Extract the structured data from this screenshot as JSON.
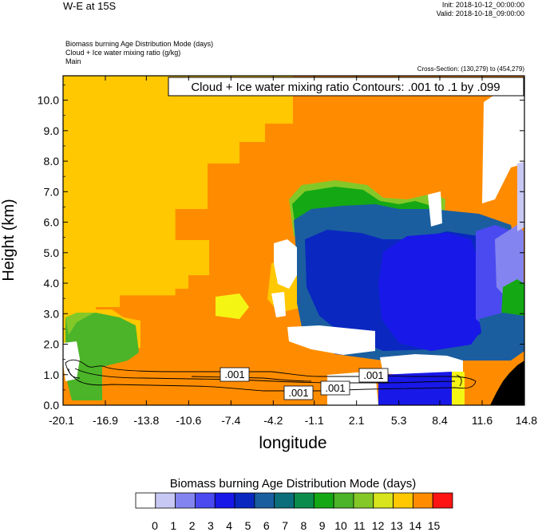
{
  "header": {
    "title": "W-E at 15S",
    "init": "Init: 2018-10-12_00:00:00",
    "valid": "Valid: 2018-10-18_09:00:00",
    "descriptions": [
      "Biomass burning Age Distribution Mode   (days)",
      "Cloud + Ice water mixing ratio   (g/kg)",
      "Main"
    ],
    "cross_section": "Cross-Section: (130,279) to (454,279)"
  },
  "chart_data": {
    "type": "heatmap",
    "title": "W-E at 15S",
    "contour_label": "Cloud + Ice water mixing ratio Contours: .001 to .1 by .099",
    "xlabel": "longitude",
    "ylabel": "Height (km)",
    "x_ticks": [
      "-20.1",
      "-16.9",
      "-13.8",
      "-10.6",
      "-7.4",
      "-4.2",
      "-1.1",
      "2.1",
      "5.3",
      "8.4",
      "11.6",
      "14.8"
    ],
    "y_ticks": [
      "0.0",
      "1.0",
      "2.0",
      "3.0",
      "4.0",
      "5.0",
      "6.0",
      "7.0",
      "8.0",
      "9.0",
      "10.0"
    ],
    "xlim": [
      -20.1,
      14.8
    ],
    "ylim": [
      0.0,
      10.8
    ],
    "contour_values": [
      ".001",
      ".001",
      ".001",
      ".001"
    ],
    "colorbar_title": "Biomass burning Age Distribution Mode  (days)",
    "colorbar_labels": [
      "0",
      "1",
      "2",
      "3",
      "4",
      "5",
      "6",
      "7",
      "8",
      "9",
      "10",
      "11",
      "12",
      "13",
      "14",
      "15"
    ],
    "colorbar_colors": [
      "#ffffff",
      "#c8c8f5",
      "#8484f0",
      "#4a4af0",
      "#1818e8",
      "#0a28c0",
      "#1a5ea0",
      "#0c6e7a",
      "#0c8c4c",
      "#14a814",
      "#4cb428",
      "#84c828",
      "#d8e41c",
      "#f5f514",
      "#ffc800",
      "#ff8c00",
      "#ff5000",
      "#ff1414"
    ],
    "regions": [
      {
        "name": "region-12-13-upper-left",
        "color": "#ffc800",
        "x": [
          -20.1,
          -11.6
        ],
        "y": [
          3.6,
          10.8
        ]
      },
      {
        "name": "region-13-14-main",
        "color": "#ff8c00",
        "x": [
          -11.6,
          14.8
        ],
        "y": [
          0,
          10.8
        ]
      },
      {
        "name": "region-12-13-lower-left",
        "color": "#ffc800",
        "x": [
          -18.5,
          -11.6
        ],
        "y": [
          2.2,
          3.2
        ]
      },
      {
        "name": "region-clear-upper-right",
        "color": "#ffffff",
        "x": [
          12.2,
          14.8
        ],
        "y": [
          6.5,
          10.2
        ]
      },
      {
        "name": "region-3-5-right",
        "color": "#1818e8",
        "x": [
          3.2,
          12.0
        ],
        "y": [
          1.5,
          6.3
        ]
      },
      {
        "name": "region-6-8-mid",
        "color": "#1a5ea0",
        "x": [
          -2.8,
          3.4
        ],
        "y": [
          2.6,
          7.0
        ]
      },
      {
        "name": "region-7-9-green-top",
        "color": "#14a814",
        "x": [
          -2.6,
          1.0
        ],
        "y": [
          5.6,
          7.4
        ]
      },
      {
        "name": "region-2-4-right-edge",
        "color": "#8484f0",
        "x": [
          11.4,
          14.2
        ],
        "y": [
          2.6,
          7.5
        ]
      },
      {
        "name": "region-7-10-lower-left",
        "color": "#4cb428",
        "x": [
          -20.1,
          -15.4
        ],
        "y": [
          0.2,
          2.9
        ]
      },
      {
        "name": "region-4-5-bottom",
        "color": "#0a28c0",
        "x": [
          4.0,
          8.4
        ],
        "y": [
          0,
          0.9
        ]
      },
      {
        "name": "region-terrain",
        "color": "#000000",
        "x": [
          13.0,
          14.8
        ],
        "y": [
          0,
          1.6
        ]
      }
    ]
  }
}
